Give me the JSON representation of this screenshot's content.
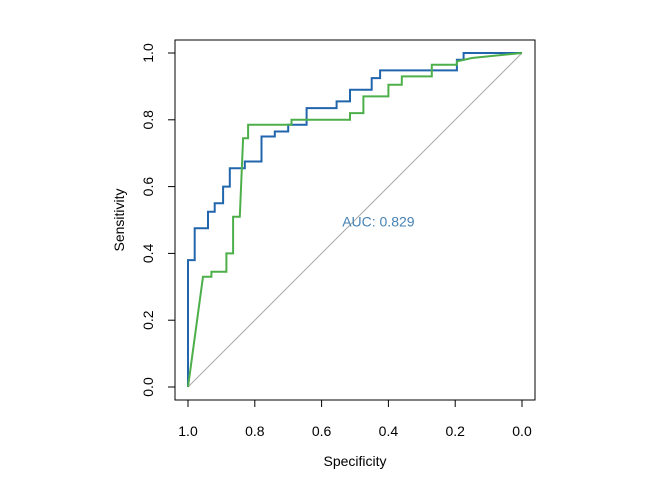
{
  "chart_data": {
    "type": "line",
    "title": "",
    "xlabel": "Specificity",
    "ylabel": "Sensitivity",
    "xlim": [
      1.0,
      0.0
    ],
    "ylim": [
      0.0,
      1.0
    ],
    "x_reversed": true,
    "x_ticks": [
      "1.0",
      "0.8",
      "0.6",
      "0.4",
      "0.2",
      "0.0"
    ],
    "y_ticks": [
      "0.0",
      "0.2",
      "0.4",
      "0.6",
      "0.8",
      "1.0"
    ],
    "grid": false,
    "legend": "none",
    "reference_line": {
      "from": [
        1.0,
        0.0
      ],
      "to": [
        0.0,
        1.0
      ],
      "color": "#aaaaaa"
    },
    "annotation": {
      "text": "AUC: 0.829",
      "x": 0.43,
      "y": 0.48,
      "color": "#4682B4"
    },
    "series": [
      {
        "color": "#2166AC",
        "points": [
          [
            1.0,
            0.0
          ],
          [
            1.0,
            0.38
          ],
          [
            0.98,
            0.38
          ],
          [
            0.98,
            0.475
          ],
          [
            0.94,
            0.475
          ],
          [
            0.94,
            0.525
          ],
          [
            0.92,
            0.525
          ],
          [
            0.92,
            0.55
          ],
          [
            0.895,
            0.55
          ],
          [
            0.895,
            0.6
          ],
          [
            0.875,
            0.6
          ],
          [
            0.875,
            0.655
          ],
          [
            0.83,
            0.655
          ],
          [
            0.83,
            0.675
          ],
          [
            0.78,
            0.675
          ],
          [
            0.78,
            0.75
          ],
          [
            0.74,
            0.75
          ],
          [
            0.74,
            0.765
          ],
          [
            0.7,
            0.765
          ],
          [
            0.7,
            0.785
          ],
          [
            0.645,
            0.785
          ],
          [
            0.645,
            0.835
          ],
          [
            0.555,
            0.835
          ],
          [
            0.555,
            0.855
          ],
          [
            0.515,
            0.855
          ],
          [
            0.515,
            0.89
          ],
          [
            0.45,
            0.89
          ],
          [
            0.45,
            0.925
          ],
          [
            0.425,
            0.925
          ],
          [
            0.425,
            0.948
          ],
          [
            0.195,
            0.948
          ],
          [
            0.195,
            0.98
          ],
          [
            0.175,
            0.98
          ],
          [
            0.175,
            1.0
          ],
          [
            0.0,
            1.0
          ]
        ]
      },
      {
        "color": "#4DAF4A",
        "points": [
          [
            1.0,
            0.0
          ],
          [
            0.955,
            0.33
          ],
          [
            0.93,
            0.33
          ],
          [
            0.93,
            0.345
          ],
          [
            0.885,
            0.345
          ],
          [
            0.885,
            0.4
          ],
          [
            0.865,
            0.4
          ],
          [
            0.865,
            0.51
          ],
          [
            0.845,
            0.51
          ],
          [
            0.835,
            0.745
          ],
          [
            0.82,
            0.745
          ],
          [
            0.82,
            0.785
          ],
          [
            0.69,
            0.785
          ],
          [
            0.69,
            0.8
          ],
          [
            0.515,
            0.8
          ],
          [
            0.515,
            0.82
          ],
          [
            0.475,
            0.82
          ],
          [
            0.475,
            0.87
          ],
          [
            0.4,
            0.87
          ],
          [
            0.4,
            0.905
          ],
          [
            0.36,
            0.905
          ],
          [
            0.36,
            0.93
          ],
          [
            0.27,
            0.93
          ],
          [
            0.27,
            0.965
          ],
          [
            0.195,
            0.965
          ],
          [
            0.195,
            0.975
          ],
          [
            0.15,
            0.985
          ],
          [
            0.0,
            1.0
          ]
        ]
      }
    ]
  }
}
